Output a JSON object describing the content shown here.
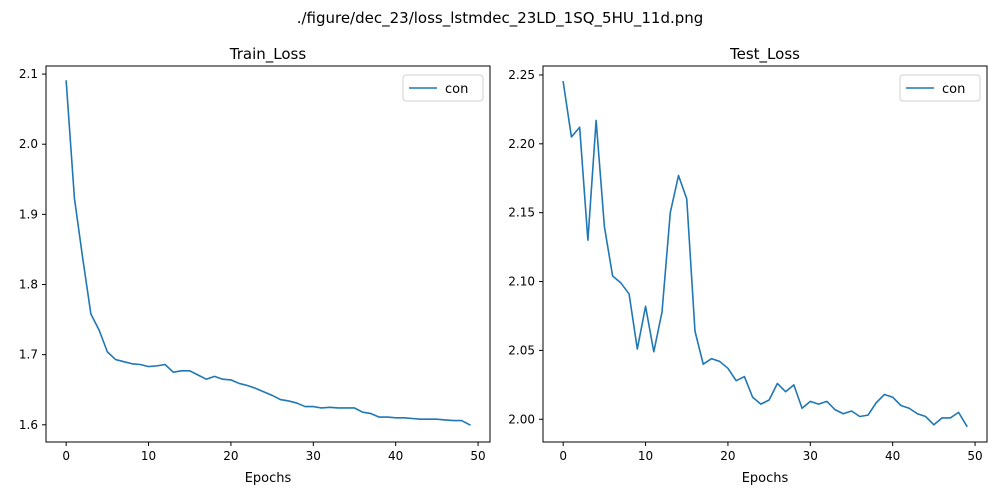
{
  "figure": {
    "suptitle": "./figure/dec_23/loss_lstmdec_23LD_1SQ_5HU_11d.png"
  },
  "colors": {
    "series": "#1f77b4"
  },
  "chart_data": [
    {
      "type": "line",
      "title": "Train_Loss",
      "xlabel": "Epochs",
      "ylabel": "",
      "xlim": [
        -2.45,
        51.45
      ],
      "ylim": [
        1.5755,
        2.1115
      ],
      "xticks": [
        0,
        10,
        20,
        30,
        40,
        50
      ],
      "yticks": [
        1.6,
        1.7,
        1.8,
        1.9,
        2.0,
        2.1
      ],
      "ytick_labels": [
        "1.6",
        "1.7",
        "1.8",
        "1.9",
        "2.0",
        "2.1"
      ],
      "legend": "top-right",
      "grid": false,
      "series": [
        {
          "name": "con",
          "x": [
            0,
            1,
            2,
            3,
            4,
            5,
            6,
            7,
            8,
            9,
            10,
            11,
            12,
            13,
            14,
            15,
            16,
            17,
            18,
            19,
            20,
            21,
            22,
            23,
            24,
            25,
            26,
            27,
            28,
            29,
            30,
            31,
            32,
            33,
            34,
            35,
            36,
            37,
            38,
            39,
            40,
            41,
            42,
            43,
            44,
            45,
            46,
            47,
            48,
            49
          ],
          "values": [
            2.09,
            1.923,
            1.838,
            1.758,
            1.735,
            1.704,
            1.693,
            1.69,
            1.687,
            1.686,
            1.683,
            1.684,
            1.686,
            1.675,
            1.677,
            1.677,
            1.671,
            1.665,
            1.669,
            1.665,
            1.664,
            1.659,
            1.656,
            1.652,
            1.647,
            1.642,
            1.636,
            1.634,
            1.631,
            1.626,
            1.626,
            1.624,
            1.625,
            1.624,
            1.624,
            1.624,
            1.618,
            1.616,
            1.611,
            1.611,
            1.61,
            1.61,
            1.609,
            1.608,
            1.608,
            1.608,
            1.607,
            1.606,
            1.606,
            1.6
          ]
        }
      ]
    },
    {
      "type": "line",
      "title": "Test_Loss",
      "xlabel": "Epochs",
      "ylabel": "",
      "xlim": [
        -2.45,
        51.45
      ],
      "ylim": [
        1.9835,
        2.2565
      ],
      "xticks": [
        0,
        10,
        20,
        30,
        40,
        50
      ],
      "yticks": [
        2.0,
        2.05,
        2.1,
        2.15,
        2.2,
        2.25
      ],
      "ytick_labels": [
        "2.00",
        "2.05",
        "2.10",
        "2.15",
        "2.20",
        "2.25"
      ],
      "legend": "top-right",
      "grid": false,
      "series": [
        {
          "name": "con",
          "x": [
            0,
            1,
            2,
            3,
            4,
            5,
            6,
            7,
            8,
            9,
            10,
            11,
            12,
            13,
            14,
            15,
            16,
            17,
            18,
            19,
            20,
            21,
            22,
            23,
            24,
            25,
            26,
            27,
            28,
            29,
            30,
            31,
            32,
            33,
            34,
            35,
            36,
            37,
            38,
            39,
            40,
            41,
            42,
            43,
            44,
            45,
            46,
            47,
            48,
            49
          ],
          "values": [
            2.245,
            2.205,
            2.212,
            2.13,
            2.217,
            2.14,
            2.104,
            2.099,
            2.091,
            2.051,
            2.082,
            2.049,
            2.078,
            2.15,
            2.177,
            2.16,
            2.064,
            2.04,
            2.044,
            2.042,
            2.037,
            2.028,
            2.031,
            2.016,
            2.011,
            2.014,
            2.026,
            2.02,
            2.025,
            2.008,
            2.013,
            2.011,
            2.013,
            2.007,
            2.004,
            2.006,
            2.002,
            2.003,
            2.012,
            2.018,
            2.016,
            2.01,
            2.008,
            2.004,
            2.002,
            1.996,
            2.001,
            2.001,
            2.005,
            1.995
          ]
        }
      ]
    }
  ]
}
